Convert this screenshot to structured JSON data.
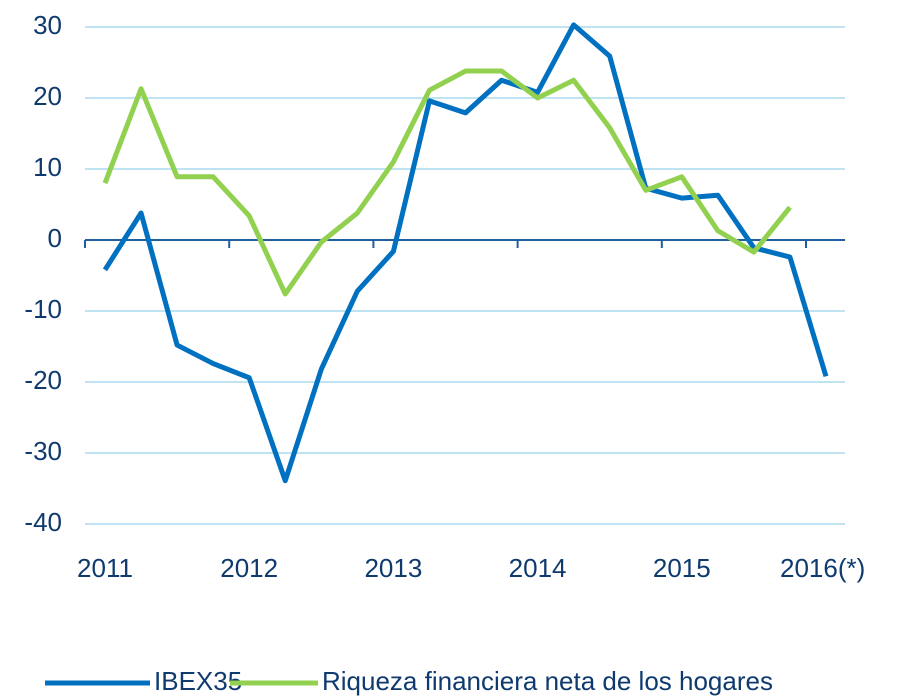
{
  "chart_data": {
    "type": "line",
    "categories": [
      "2011",
      null,
      null,
      null,
      "2012",
      null,
      null,
      null,
      "2013",
      null,
      null,
      null,
      "2014",
      null,
      null,
      null,
      "2015",
      null,
      null,
      null,
      "2016(*)"
    ],
    "series": [
      {
        "name": "IBEX35",
        "color": "#0070c0",
        "values": [
          -4.2,
          3.8,
          -14.8,
          -17.4,
          -19.4,
          -33.9,
          -18.2,
          -7.2,
          -1.6,
          19.6,
          17.9,
          22.5,
          20.8,
          30.3,
          25.9,
          7.3,
          5.9,
          6.3,
          -1.1,
          -2.4,
          -19.2
        ]
      },
      {
        "name": "Riqueza financiera neta de los hogares",
        "color": "#92d050",
        "values": [
          8.0,
          21.3,
          8.9,
          8.9,
          3.4,
          -7.6,
          -0.3,
          3.8,
          11.0,
          21.1,
          23.8,
          23.8,
          20.0,
          22.5,
          15.8,
          7.0,
          8.9,
          1.3,
          -1.7,
          4.6,
          null
        ]
      }
    ],
    "ylim": [
      -40,
      30
    ],
    "yticks": [
      -40,
      -30,
      -20,
      -10,
      0,
      10,
      20,
      30
    ],
    "grid": true,
    "legend": "bottom"
  }
}
